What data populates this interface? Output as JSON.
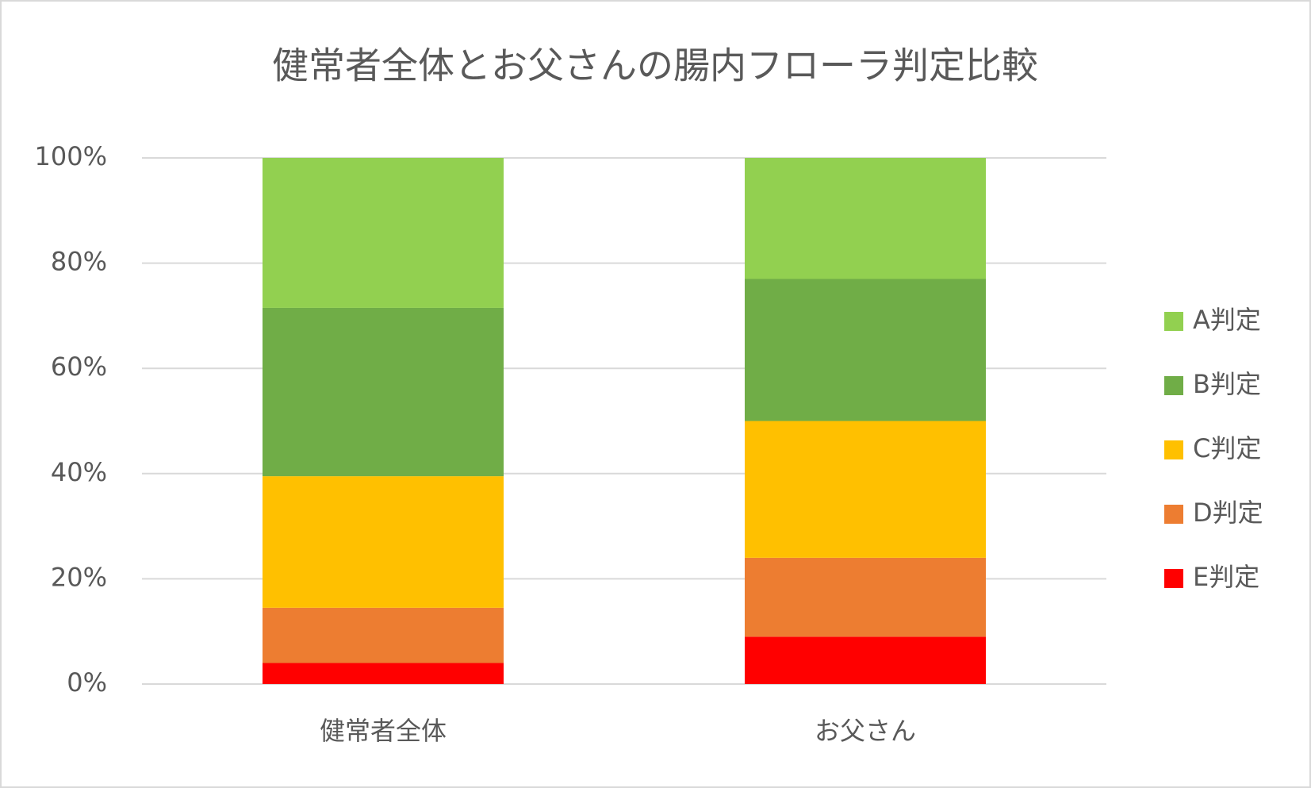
{
  "chart_data": {
    "type": "stacked-bar",
    "title": "健常者全体とお父さんの腸内フローラ判定比較",
    "categories": [
      "健常者全体",
      "お父さん"
    ],
    "series": [
      {
        "name": "E判定",
        "color": "#ff0000",
        "values": [
          4,
          9
        ]
      },
      {
        "name": "D判定",
        "color": "#ed7d31",
        "values": [
          10.5,
          15
        ]
      },
      {
        "name": "C判定",
        "color": "#ffc000",
        "values": [
          25,
          26
        ]
      },
      {
        "name": "B判定",
        "color": "#70ad47",
        "values": [
          32,
          27
        ]
      },
      {
        "name": "A判定",
        "color": "#92d050",
        "values": [
          28.5,
          23
        ]
      }
    ],
    "ylim": [
      0,
      100
    ],
    "yticks": [
      {
        "value": 0,
        "label": "0%"
      },
      {
        "value": 20,
        "label": "20%"
      },
      {
        "value": 40,
        "label": "40%"
      },
      {
        "value": 60,
        "label": "60%"
      },
      {
        "value": 80,
        "label": "80%"
      },
      {
        "value": 100,
        "label": "100%"
      }
    ],
    "grid": true,
    "legend": "right"
  }
}
